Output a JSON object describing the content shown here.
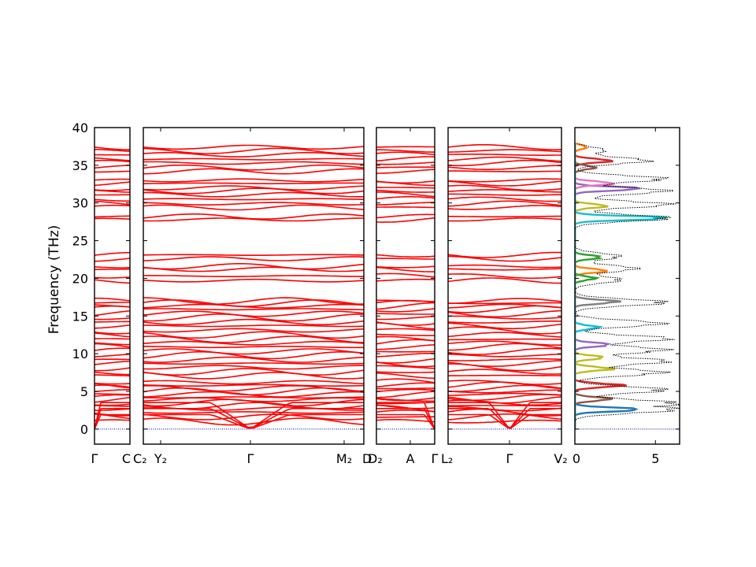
{
  "chart_data": {
    "type": "line",
    "ylabel": "Frequency (THz)",
    "ylim": [
      -2,
      40
    ],
    "yticks": [
      0,
      5,
      10,
      15,
      20,
      25,
      30,
      35,
      40
    ],
    "grid": false,
    "band_color": "#ff0000",
    "zero_line_color": "#0000aa",
    "segments": [
      {
        "path": "Γ–C",
        "tick_labels": [
          "Γ",
          "C"
        ]
      },
      {
        "path": "C2–Y2–Γ–M2–D",
        "tick_labels": [
          "C₂",
          "Y₂",
          "Γ",
          "M₂",
          "D"
        ]
      },
      {
        "path": "D2–A–Γ",
        "tick_labels": [
          "D₂",
          "A",
          "Γ"
        ]
      },
      {
        "path": "L2–Γ–V2",
        "tick_labels": [
          "L₂",
          "Γ",
          "V₂"
        ]
      }
    ],
    "band_frequencies_at_gamma": [
      0,
      0,
      0,
      1.0,
      1.6,
      2.2,
      2.7,
      3.1,
      3.5,
      3.9,
      4.2,
      4.6,
      5.0,
      5.4,
      5.8,
      6.2,
      7.1,
      7.6,
      8.2,
      8.7,
      9.2,
      9.8,
      10.3,
      10.9,
      11.4,
      11.9,
      12.5,
      13.1,
      13.7,
      14.2,
      14.8,
      15.3,
      15.9,
      16.3,
      16.7,
      17.0,
      19.7,
      20.3,
      21.2,
      21.6,
      22.6,
      23.1,
      27.8,
      28.2,
      29.4,
      29.9,
      30.5,
      31.1,
      31.6,
      32.0,
      32.6,
      33.0,
      34.2,
      34.7,
      35.3,
      35.8,
      36.4,
      36.9,
      37.4
    ],
    "dos_panel": {
      "xlim": [
        0,
        6.5
      ],
      "xticks": [
        0,
        5
      ],
      "total_dos_style": "dotted black",
      "partial_dos_colors": [
        "#1f77b4",
        "#ff7f0e",
        "#2ca02c",
        "#d62728",
        "#9467bd",
        "#8c564b",
        "#e377c2",
        "#7f7f7f",
        "#bcbd22",
        "#17becf"
      ],
      "total_dos_peaks": [
        {
          "freq": 2.5,
          "value": 6.2
        },
        {
          "freq": 3.5,
          "value": 6.4
        },
        {
          "freq": 5.2,
          "value": 6.3
        },
        {
          "freq": 7.5,
          "value": 6.0
        },
        {
          "freq": 9.0,
          "value": 6.4
        },
        {
          "freq": 10.5,
          "value": 6.2
        },
        {
          "freq": 12.0,
          "value": 6.5
        },
        {
          "freq": 14.0,
          "value": 6.0
        },
        {
          "freq": 16.8,
          "value": 6.3
        },
        {
          "freq": 19.8,
          "value": 3.2
        },
        {
          "freq": 21.3,
          "value": 4.2
        },
        {
          "freq": 22.9,
          "value": 3.1
        },
        {
          "freq": 28.0,
          "value": 6.5
        },
        {
          "freq": 29.8,
          "value": 6.4
        },
        {
          "freq": 31.6,
          "value": 6.3
        },
        {
          "freq": 33.2,
          "value": 6.2
        },
        {
          "freq": 35.6,
          "value": 5.0
        },
        {
          "freq": 37.0,
          "value": 2.0
        }
      ],
      "partial_dos_peaks": [
        {
          "freq": 2.6,
          "value": 4.5,
          "series": 0
        },
        {
          "freq": 4.0,
          "value": 2.5,
          "series": 5
        },
        {
          "freq": 5.8,
          "value": 3.3,
          "series": 3
        },
        {
          "freq": 8.0,
          "value": 2.6,
          "series": 8
        },
        {
          "freq": 9.5,
          "value": 2.0,
          "series": 8
        },
        {
          "freq": 11.2,
          "value": 2.4,
          "series": 4
        },
        {
          "freq": 13.5,
          "value": 1.6,
          "series": 9
        },
        {
          "freq": 16.9,
          "value": 3.0,
          "series": 7
        },
        {
          "freq": 20.0,
          "value": 1.4,
          "series": 2
        },
        {
          "freq": 21.0,
          "value": 2.2,
          "series": 1
        },
        {
          "freq": 22.8,
          "value": 1.8,
          "series": 2
        },
        {
          "freq": 28.0,
          "value": 6.5,
          "series": 9
        },
        {
          "freq": 29.6,
          "value": 2.2,
          "series": 8
        },
        {
          "freq": 31.9,
          "value": 4.5,
          "series": 4
        },
        {
          "freq": 32.6,
          "value": 2.6,
          "series": 6
        },
        {
          "freq": 34.7,
          "value": 1.4,
          "series": 5
        },
        {
          "freq": 35.6,
          "value": 2.5,
          "series": 3
        },
        {
          "freq": 37.4,
          "value": 0.8,
          "series": 1
        }
      ]
    }
  }
}
